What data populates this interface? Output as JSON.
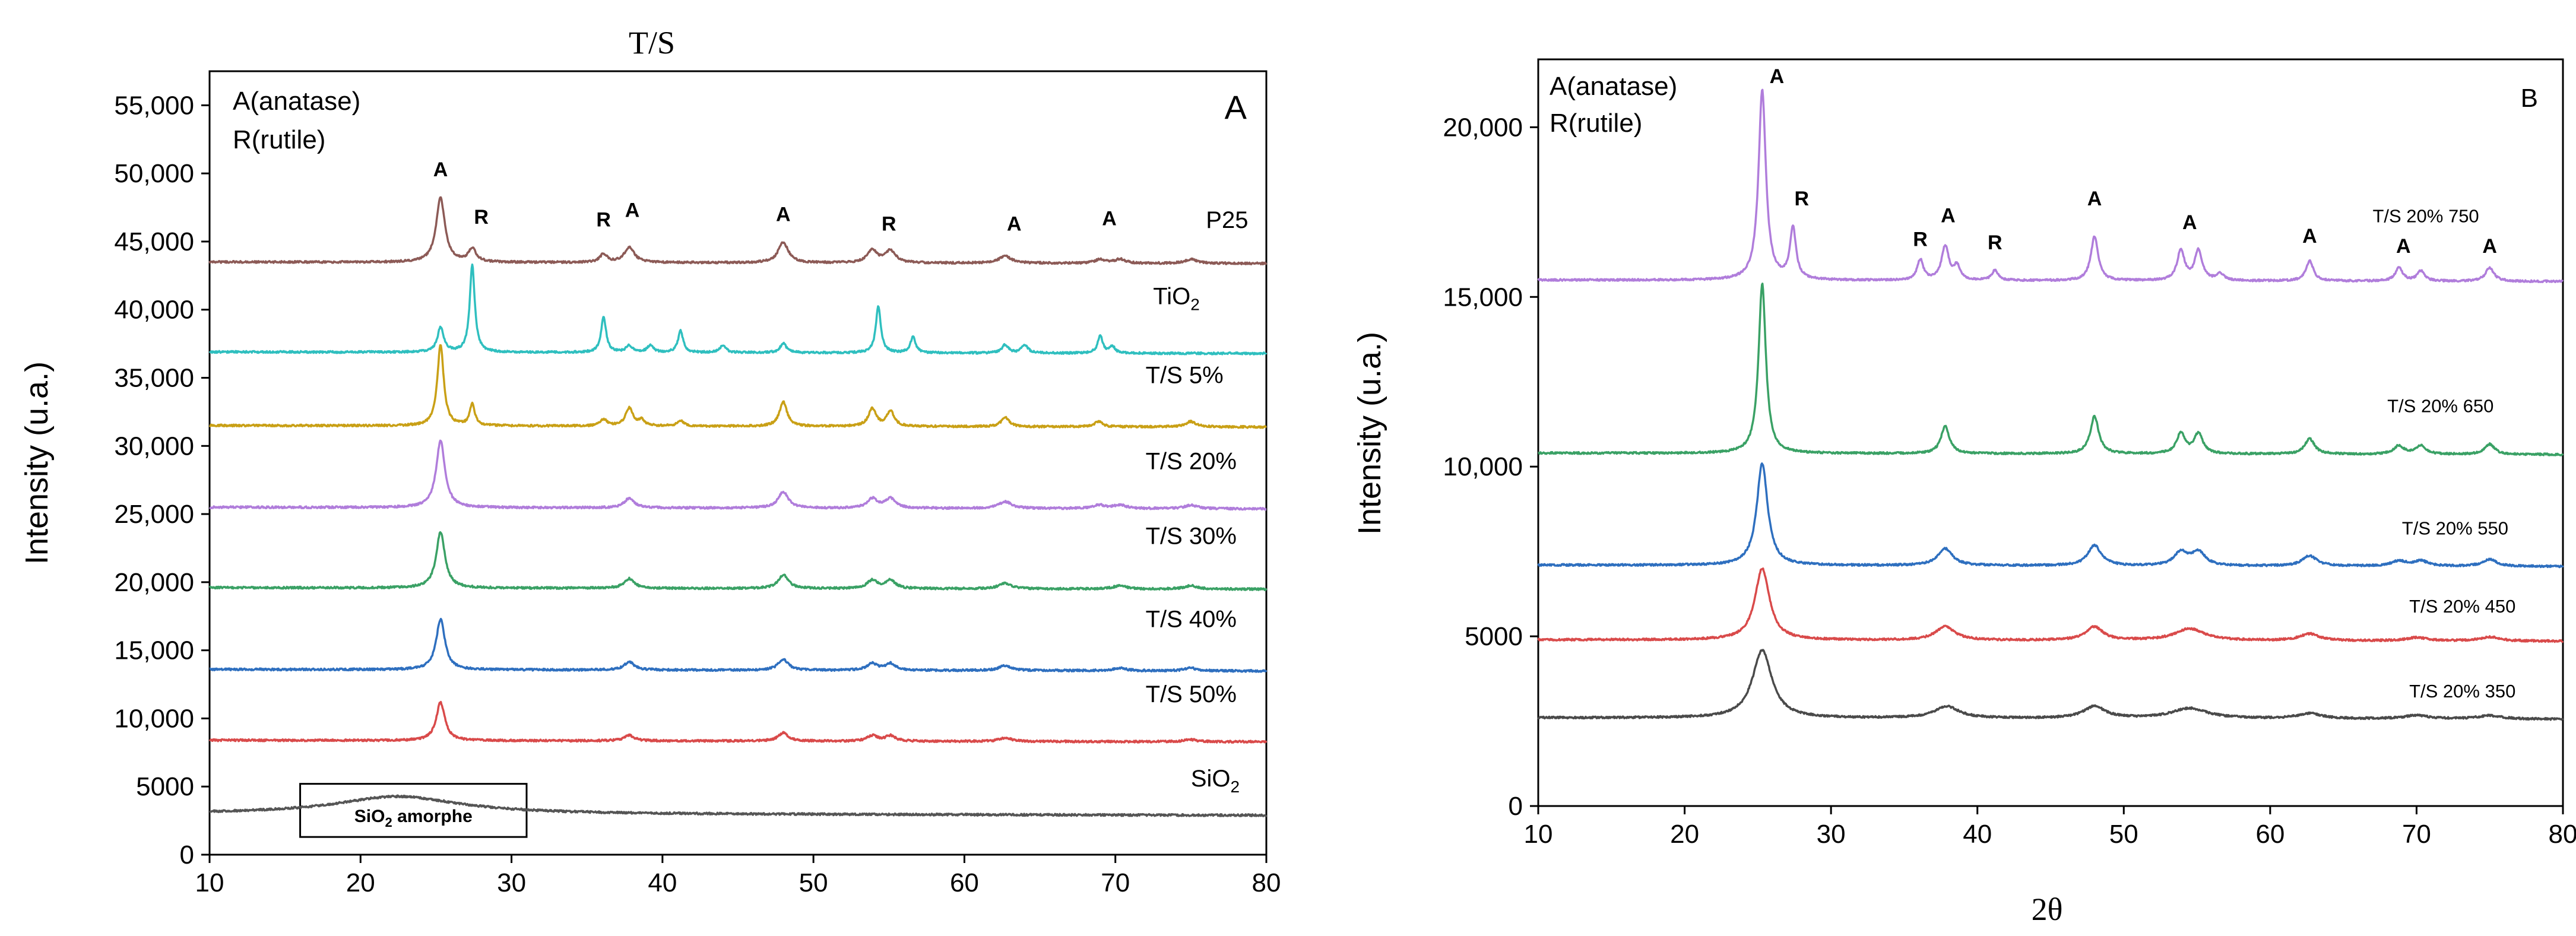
{
  "chart_data": [
    {
      "type": "line",
      "title": "T/S",
      "panel_label": "A",
      "xlabel": "",
      "ylabel": "Intensity (u.a.)",
      "xlim": [
        10,
        80
      ],
      "ylim": [
        0,
        57500
      ],
      "xticks": [
        10,
        20,
        30,
        40,
        50,
        60,
        70,
        80
      ],
      "yticks": [
        0,
        5000,
        10000,
        15000,
        20000,
        25000,
        30000,
        35000,
        40000,
        45000,
        50000,
        55000
      ],
      "ytick_labels": [
        "0",
        "5000",
        "10,000",
        "15,000",
        "20,000",
        "25,000",
        "30,000",
        "35,000",
        "40,000",
        "45,000",
        "50,000",
        "55,000"
      ],
      "xtick_labels": [
        "10",
        "20",
        "30",
        "40",
        "50",
        "60",
        "70",
        "80"
      ],
      "legend": [
        "A(anatase)",
        "R(rutile)"
      ],
      "amorphous_box": {
        "text": "SiO",
        "sub": "2",
        "suffix": " amorphe",
        "x_range": [
          16,
          31
        ],
        "y_range": [
          1300,
          5200
        ]
      },
      "series": [
        {
          "name": "P25",
          "sub": "",
          "color": "#8c5a56",
          "baseline": 43500,
          "label_x": 76,
          "label_y": 46000,
          "label_size": "small",
          "peaks": [
            [
              25.3,
              4700,
              0.35
            ],
            [
              27.4,
              1000,
              0.3
            ],
            [
              36.1,
              600,
              0.3
            ],
            [
              37.8,
              1100,
              0.4
            ],
            [
              48.0,
              1500,
              0.4
            ],
            [
              53.9,
              900,
              0.4
            ],
            [
              55.1,
              900,
              0.4
            ],
            [
              62.7,
              500,
              0.5
            ],
            [
              69.0,
              300,
              0.4
            ],
            [
              70.3,
              300,
              0.4
            ],
            [
              75.0,
              300,
              0.5
            ]
          ]
        },
        {
          "name": "TiO",
          "sub": "2",
          "color": "#2fbfbf",
          "baseline": 36900,
          "label_x": 72.5,
          "label_y": 40400,
          "label_size": "small",
          "peaks": [
            [
              25.3,
              1800,
              0.25
            ],
            [
              27.4,
              6400,
              0.2
            ],
            [
              36.1,
              2600,
              0.2
            ],
            [
              37.8,
              500,
              0.25
            ],
            [
              39.2,
              500,
              0.25
            ],
            [
              41.2,
              1600,
              0.2
            ],
            [
              44.0,
              500,
              0.25
            ],
            [
              48.0,
              700,
              0.25
            ],
            [
              54.3,
              3400,
              0.2
            ],
            [
              56.6,
              1200,
              0.2
            ],
            [
              62.7,
              600,
              0.25
            ],
            [
              64.0,
              600,
              0.25
            ],
            [
              69.0,
              1300,
              0.2
            ],
            [
              69.8,
              500,
              0.2
            ]
          ]
        },
        {
          "name": "T/S 5%",
          "sub": "",
          "color": "#c9a016",
          "baseline": 31500,
          "label_x": 72,
          "label_y": 34600,
          "label_size": "small",
          "peaks": [
            [
              25.3,
              6000,
              0.25
            ],
            [
              27.4,
              1600,
              0.2
            ],
            [
              36.1,
              500,
              0.25
            ],
            [
              37.8,
              1300,
              0.3
            ],
            [
              38.6,
              400,
              0.25
            ],
            [
              41.2,
              400,
              0.25
            ],
            [
              48.0,
              1800,
              0.3
            ],
            [
              53.9,
              1300,
              0.3
            ],
            [
              55.1,
              1100,
              0.3
            ],
            [
              62.7,
              700,
              0.3
            ],
            [
              68.9,
              400,
              0.3
            ],
            [
              75.0,
              400,
              0.4
            ]
          ]
        },
        {
          "name": "T/S 20%",
          "sub": "",
          "color": "#b07ddb",
          "baseline": 25500,
          "label_x": 72,
          "label_y": 28300,
          "label_size": "small",
          "peaks": [
            [
              25.3,
              4900,
              0.35
            ],
            [
              37.8,
              700,
              0.4
            ],
            [
              48.0,
              1200,
              0.4
            ],
            [
              53.9,
              700,
              0.4
            ],
            [
              55.1,
              700,
              0.4
            ],
            [
              62.7,
              500,
              0.5
            ],
            [
              68.9,
              250,
              0.5
            ],
            [
              70.3,
              250,
              0.5
            ],
            [
              75.0,
              250,
              0.5
            ]
          ]
        },
        {
          "name": "T/S 30%",
          "sub": "",
          "color": "#3aa165",
          "baseline": 19600,
          "label_x": 72,
          "label_y": 22800,
          "label_size": "small",
          "peaks": [
            [
              25.3,
              4100,
              0.35
            ],
            [
              37.8,
              700,
              0.4
            ],
            [
              48.0,
              1000,
              0.4
            ],
            [
              53.9,
              600,
              0.4
            ],
            [
              55.1,
              600,
              0.4
            ],
            [
              62.7,
              400,
              0.5
            ],
            [
              70.3,
              250,
              0.5
            ],
            [
              75.0,
              250,
              0.5
            ]
          ]
        },
        {
          "name": "T/S 40%",
          "sub": "",
          "color": "#2e6fbf",
          "baseline": 13600,
          "label_x": 72,
          "label_y": 16700,
          "label_size": "big",
          "peaks": [
            [
              25.3,
              3700,
              0.35
            ],
            [
              37.8,
              600,
              0.4
            ],
            [
              48.0,
              800,
              0.4
            ],
            [
              53.9,
              500,
              0.4
            ],
            [
              55.1,
              500,
              0.4
            ],
            [
              62.7,
              350,
              0.5
            ],
            [
              70.3,
              200,
              0.5
            ],
            [
              75.0,
              200,
              0.5
            ]
          ]
        },
        {
          "name": "T/S 50%",
          "sub": "",
          "color": "#d94a4a",
          "baseline": 8400,
          "label_x": 72,
          "label_y": 11200,
          "label_size": "small",
          "peaks": [
            [
              25.3,
              2800,
              0.35
            ],
            [
              37.8,
              400,
              0.4
            ],
            [
              48.0,
              600,
              0.4
            ],
            [
              53.9,
              400,
              0.4
            ],
            [
              55.1,
              400,
              0.4
            ],
            [
              62.7,
              250,
              0.5
            ],
            [
              75.0,
              150,
              0.5
            ]
          ]
        },
        {
          "name": "SiO",
          "sub": "2",
          "color": "#555555",
          "baseline": 3000,
          "label_x": 75,
          "label_y": 5000,
          "label_size": "small",
          "peaks": [
            [
              22.5,
              1300,
              5.0
            ]
          ]
        }
      ],
      "peak_labels": [
        {
          "text": "A",
          "x": 25.3,
          "y": 49800
        },
        {
          "text": "R",
          "x": 28.0,
          "y": 46300
        },
        {
          "text": "R",
          "x": 36.1,
          "y": 46100
        },
        {
          "text": "A",
          "x": 38.0,
          "y": 46800
        },
        {
          "text": "A",
          "x": 48.0,
          "y": 46500
        },
        {
          "text": "R",
          "x": 55.0,
          "y": 45800
        },
        {
          "text": "A",
          "x": 63.3,
          "y": 45800
        },
        {
          "text": "A",
          "x": 69.6,
          "y": 46200
        }
      ]
    },
    {
      "type": "line",
      "title": "",
      "panel_label": "B",
      "xlabel": "2θ",
      "ylabel": "Intensity (u.a.)",
      "xlim": [
        10,
        80
      ],
      "ylim": [
        0,
        22000
      ],
      "xticks": [
        10,
        20,
        30,
        40,
        50,
        60,
        70,
        80
      ],
      "yticks": [
        0,
        5000,
        10000,
        15000,
        20000
      ],
      "ytick_labels": [
        "0",
        "5000",
        "10,000",
        "15,000",
        "20,000"
      ],
      "xtick_labels": [
        "10",
        "20",
        "30",
        "40",
        "50",
        "60",
        "70",
        "80"
      ],
      "legend": [
        "A(anatase)",
        "R(rutile)"
      ],
      "series": [
        {
          "name": "T/S 20% 750",
          "color": "#b07ddb",
          "baseline": 15500,
          "label_x": 67,
          "label_y": 17200,
          "peaks": [
            [
              25.3,
              5600,
              0.3
            ],
            [
              27.4,
              1500,
              0.25
            ],
            [
              36.1,
              600,
              0.25
            ],
            [
              37.8,
              1000,
              0.3
            ],
            [
              38.6,
              400,
              0.25
            ],
            [
              41.2,
              300,
              0.25
            ],
            [
              48.0,
              1300,
              0.3
            ],
            [
              53.9,
              900,
              0.3
            ],
            [
              55.1,
              900,
              0.3
            ],
            [
              56.6,
              200,
              0.3
            ],
            [
              62.7,
              600,
              0.3
            ],
            [
              68.8,
              400,
              0.3
            ],
            [
              70.3,
              300,
              0.3
            ],
            [
              75.0,
              400,
              0.35
            ]
          ]
        },
        {
          "name": "T/S 20% 650",
          "color": "#3aa165",
          "baseline": 10400,
          "label_x": 68,
          "label_y": 11600,
          "peaks": [
            [
              25.3,
              5000,
              0.3
            ],
            [
              37.8,
              800,
              0.35
            ],
            [
              48.0,
              1100,
              0.35
            ],
            [
              53.9,
              600,
              0.35
            ],
            [
              55.1,
              600,
              0.35
            ],
            [
              62.7,
              450,
              0.4
            ],
            [
              68.8,
              250,
              0.4
            ],
            [
              70.3,
              250,
              0.4
            ],
            [
              75.0,
              300,
              0.4
            ]
          ]
        },
        {
          "name": "T/S 20% 550",
          "color": "#2e6fbf",
          "baseline": 7100,
          "label_x": 69,
          "label_y": 8000,
          "peaks": [
            [
              25.3,
              3000,
              0.45
            ],
            [
              37.8,
              500,
              0.6
            ],
            [
              48.0,
              600,
              0.55
            ],
            [
              53.9,
              400,
              0.55
            ],
            [
              55.1,
              400,
              0.55
            ],
            [
              62.7,
              300,
              0.6
            ],
            [
              68.8,
              150,
              0.6
            ],
            [
              70.3,
              150,
              0.6
            ],
            [
              75.0,
              200,
              0.6
            ]
          ]
        },
        {
          "name": "T/S 20% 450",
          "color": "#d94a4a",
          "baseline": 4900,
          "label_x": 69.5,
          "label_y": 5700,
          "peaks": [
            [
              25.3,
              2100,
              0.6
            ],
            [
              37.8,
              400,
              0.8
            ],
            [
              48.0,
              400,
              0.7
            ],
            [
              54.5,
              350,
              1.2
            ],
            [
              62.7,
              200,
              0.8
            ],
            [
              70.0,
              100,
              0.8
            ],
            [
              75.0,
              120,
              0.8
            ]
          ]
        },
        {
          "name": "T/S 20% 350",
          "color": "#4a4a4a",
          "baseline": 2600,
          "label_x": 69.5,
          "label_y": 3200,
          "peaks": [
            [
              25.3,
              2000,
              0.8
            ],
            [
              37.9,
              350,
              1.0
            ],
            [
              48.0,
              350,
              0.9
            ],
            [
              54.5,
              300,
              1.5
            ],
            [
              62.7,
              150,
              1.0
            ],
            [
              70.0,
              100,
              1.0
            ],
            [
              75.0,
              100,
              1.0
            ]
          ]
        }
      ],
      "peak_labels": [
        {
          "text": "A",
          "x": 26.3,
          "y": 21300
        },
        {
          "text": "R",
          "x": 28.0,
          "y": 17700
        },
        {
          "text": "R",
          "x": 36.1,
          "y": 16500
        },
        {
          "text": "A",
          "x": 38.0,
          "y": 17200
        },
        {
          "text": "R",
          "x": 41.2,
          "y": 16400
        },
        {
          "text": "A",
          "x": 48.0,
          "y": 17700
        },
        {
          "text": "A",
          "x": 54.5,
          "y": 17000
        },
        {
          "text": "A",
          "x": 62.7,
          "y": 16600
        },
        {
          "text": "A",
          "x": 69.1,
          "y": 16300
        },
        {
          "text": "A",
          "x": 75.0,
          "y": 16300
        }
      ]
    }
  ]
}
